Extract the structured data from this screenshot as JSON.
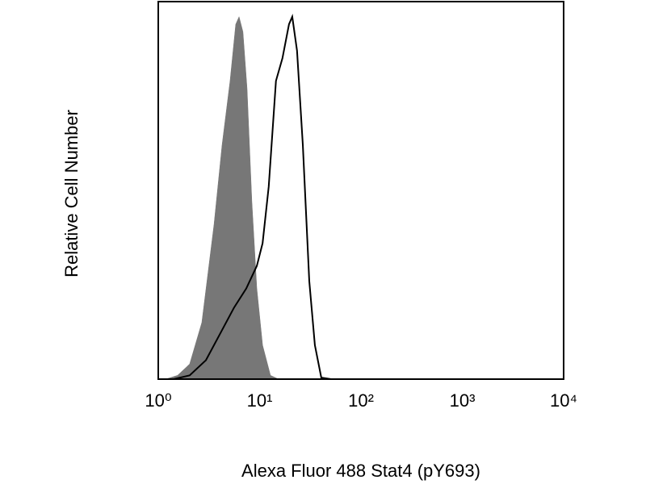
{
  "chart_data": {
    "type": "histogram-overlay",
    "x_label": "Alexa Fluor 488 Stat4 (pY693)",
    "y_label": "Relative Cell Number",
    "log_x": true,
    "xlim": [
      1,
      10000
    ],
    "ylim": [
      0,
      100
    ],
    "xticks": [
      {
        "value": 1,
        "label": "10⁰"
      },
      {
        "value": 10,
        "label": "10¹"
      },
      {
        "value": 100,
        "label": "10²"
      },
      {
        "value": 1000,
        "label": "10³"
      },
      {
        "value": 10000,
        "label": "10⁴"
      }
    ],
    "series": [
      {
        "color": "#777777",
        "fill": true,
        "x": [
          1.18,
          1.55,
          2.04,
          2.69,
          3.55,
          4.26,
          5.11,
          5.81,
          6.27,
          6.85,
          7.52,
          8.39,
          9.39,
          10.7,
          12.8,
          15.4
        ],
        "values": [
          0,
          1,
          4,
          15,
          41,
          62,
          79,
          94,
          96,
          92,
          77,
          47,
          24,
          9,
          1,
          0
        ]
      },
      {
        "color": "#000000",
        "fill": false,
        "x": [
          1.42,
          2.04,
          2.95,
          4.26,
          5.61,
          7.38,
          9.39,
          10.7,
          12.3,
          14.5,
          16.8,
          19.5,
          21.0,
          23.4,
          26.7,
          30.9,
          35.1,
          40.6,
          50.6,
          10000
        ],
        "values": [
          0,
          1,
          5,
          13,
          19,
          24,
          30,
          36,
          51,
          79,
          85,
          94,
          96,
          87,
          62,
          26,
          9,
          0.4,
          0,
          0
        ]
      }
    ]
  }
}
